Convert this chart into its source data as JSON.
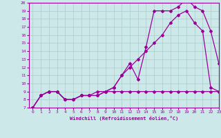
{
  "xlabel": "Windchill (Refroidissement éolien,°C)",
  "bg_color": "#cce8e8",
  "grid_color": "#aacccc",
  "line_color": "#990099",
  "line1_y": [
    7.0,
    8.5,
    9.0,
    9.0,
    8.0,
    8.0,
    8.5,
    8.5,
    8.5,
    9.0,
    9.5,
    11.0,
    12.5,
    10.5,
    14.5,
    19.0,
    19.0,
    19.0,
    19.5,
    20.5,
    19.5,
    19.0,
    16.5,
    12.5
  ],
  "line2_y": [
    7.0,
    8.5,
    9.0,
    9.0,
    8.0,
    8.0,
    8.5,
    8.5,
    8.5,
    9.0,
    9.5,
    11.0,
    12.0,
    13.0,
    14.0,
    15.0,
    16.0,
    17.5,
    18.5,
    19.0,
    17.5,
    16.5,
    9.5,
    9.0
  ],
  "line3_y": [
    7.0,
    8.5,
    9.0,
    9.0,
    8.0,
    8.0,
    8.5,
    8.5,
    9.0,
    9.0,
    9.0,
    9.0,
    9.0,
    9.0,
    9.0,
    9.0,
    9.0,
    9.0,
    9.0,
    9.0,
    9.0,
    9.0,
    9.0,
    9.0
  ],
  "ylim": [
    7,
    20
  ],
  "xlim": [
    -0.5,
    23
  ],
  "yticks": [
    7,
    8,
    9,
    10,
    11,
    12,
    13,
    14,
    15,
    16,
    17,
    18,
    19,
    20
  ],
  "xticks": [
    0,
    1,
    2,
    3,
    4,
    5,
    6,
    7,
    8,
    9,
    10,
    11,
    12,
    13,
    14,
    15,
    16,
    17,
    18,
    19,
    20,
    21,
    22,
    23
  ]
}
